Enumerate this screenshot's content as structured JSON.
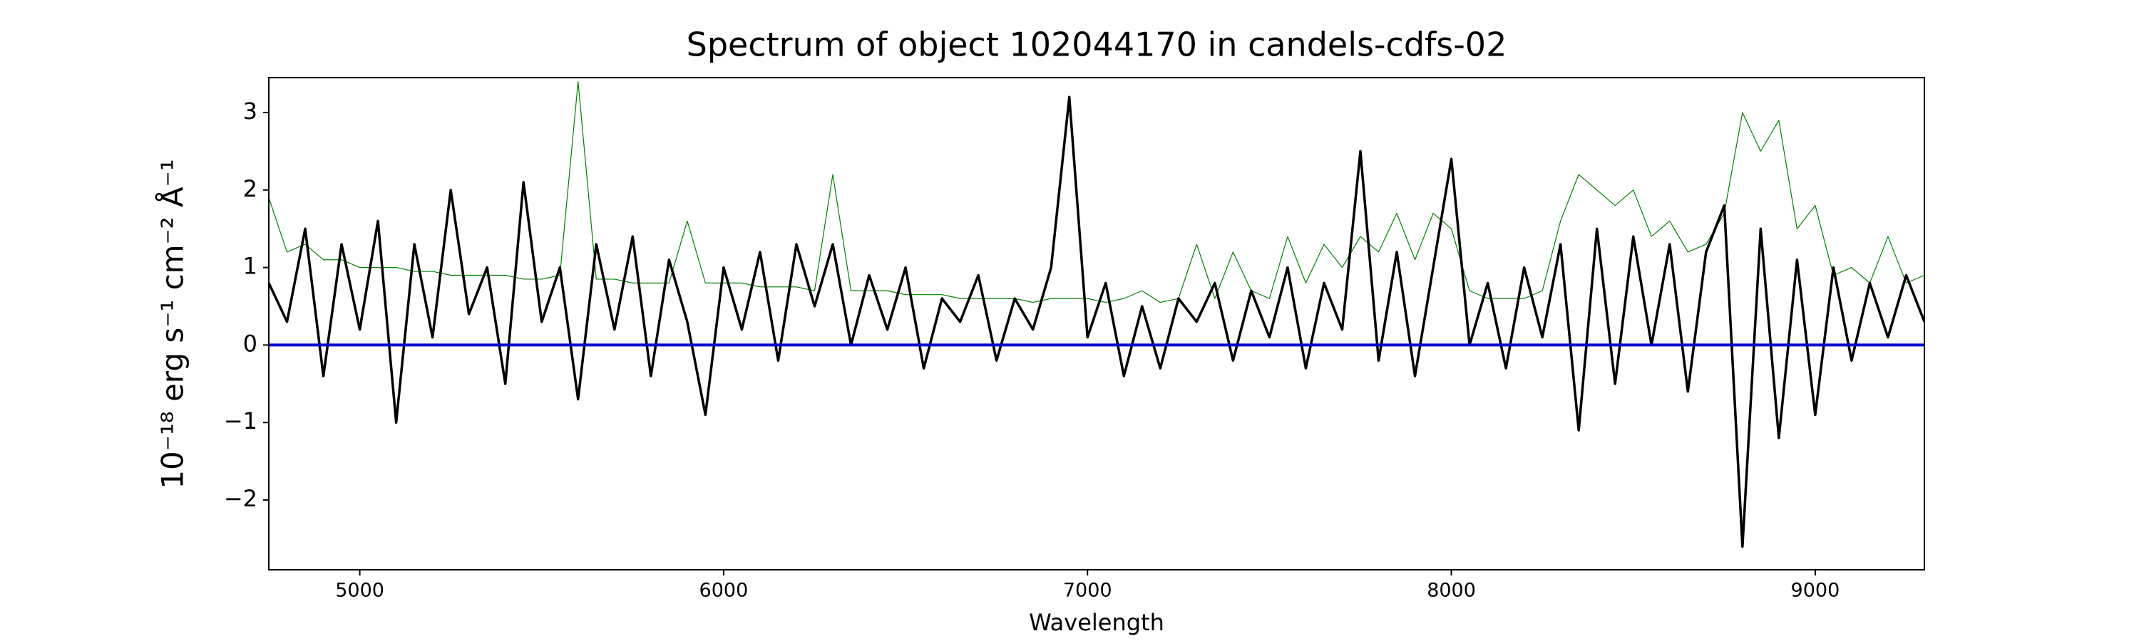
{
  "chart_data": {
    "type": "line",
    "title": "Spectrum of object 102044170 in candels-cdfs-02",
    "x_label": "Wavelength",
    "y_label": "10⁻¹⁸ erg s⁻¹ cm⁻² Å⁻¹",
    "x": [
      4750,
      4800,
      4850,
      4900,
      4950,
      5000,
      5050,
      5100,
      5150,
      5200,
      5250,
      5300,
      5350,
      5400,
      5450,
      5500,
      5550,
      5600,
      5650,
      5700,
      5750,
      5800,
      5850,
      5900,
      5950,
      6000,
      6050,
      6100,
      6150,
      6200,
      6250,
      6300,
      6350,
      6400,
      6450,
      6500,
      6550,
      6600,
      6650,
      6700,
      6750,
      6800,
      6850,
      6900,
      6950,
      7000,
      7050,
      7100,
      7150,
      7200,
      7250,
      7300,
      7350,
      7400,
      7450,
      7500,
      7550,
      7600,
      7650,
      7700,
      7750,
      7800,
      7850,
      7900,
      7950,
      8000,
      8050,
      8100,
      8150,
      8200,
      8250,
      8300,
      8350,
      8400,
      8450,
      8500,
      8550,
      8600,
      8650,
      8700,
      8750,
      8800,
      8850,
      8900,
      8950,
      9000,
      9050,
      9100,
      9150,
      9200,
      9250,
      9300
    ],
    "series": [
      {
        "color": "#008000",
        "width": 1.2,
        "values": [
          1.9,
          1.2,
          1.3,
          1.1,
          1.1,
          1.0,
          1.0,
          1.0,
          0.95,
          0.95,
          0.9,
          0.9,
          0.9,
          0.9,
          0.85,
          0.85,
          0.9,
          3.4,
          0.85,
          0.85,
          0.8,
          0.8,
          0.8,
          1.6,
          0.8,
          0.8,
          0.8,
          0.75,
          0.75,
          0.75,
          0.7,
          2.2,
          0.7,
          0.7,
          0.7,
          0.65,
          0.65,
          0.65,
          0.6,
          0.6,
          0.6,
          0.6,
          0.55,
          0.6,
          0.6,
          0.6,
          0.55,
          0.6,
          0.7,
          0.55,
          0.6,
          1.3,
          0.6,
          1.2,
          0.7,
          0.6,
          1.4,
          0.8,
          1.3,
          1.0,
          1.4,
          1.2,
          1.7,
          1.1,
          1.7,
          1.5,
          0.7,
          0.6,
          0.6,
          0.6,
          0.7,
          1.6,
          2.2,
          2.0,
          1.8,
          2.0,
          1.4,
          1.6,
          1.2,
          1.3,
          1.7,
          3.0,
          2.5,
          2.9,
          1.5,
          1.8,
          0.9,
          1.0,
          0.8,
          1.4,
          0.8,
          0.9
        ]
      },
      {
        "color": "#000000",
        "width": 3.5,
        "values": [
          0.8,
          0.3,
          1.5,
          -0.4,
          1.3,
          0.2,
          1.6,
          -1.0,
          1.3,
          0.1,
          2.0,
          0.4,
          1.0,
          -0.5,
          2.1,
          0.3,
          1.0,
          -0.7,
          1.3,
          0.2,
          1.4,
          -0.4,
          1.1,
          0.3,
          -0.9,
          1.0,
          0.2,
          1.2,
          -0.2,
          1.3,
          0.5,
          1.3,
          0.0,
          0.9,
          0.2,
          1.0,
          -0.3,
          0.6,
          0.3,
          0.9,
          -0.2,
          0.6,
          0.2,
          1.0,
          3.2,
          0.1,
          0.8,
          -0.4,
          0.5,
          -0.3,
          0.6,
          0.3,
          0.8,
          -0.2,
          0.7,
          0.1,
          1.0,
          -0.3,
          0.8,
          0.2,
          2.5,
          -0.2,
          1.2,
          -0.4,
          1.0,
          2.4,
          0.0,
          0.8,
          -0.3,
          1.0,
          0.1,
          1.3,
          -1.1,
          1.5,
          -0.5,
          1.4,
          0.0,
          1.3,
          -0.6,
          1.2,
          1.8,
          -2.6,
          1.5,
          -1.2,
          1.1,
          -0.9,
          1.0,
          -0.2,
          0.8,
          0.1,
          0.9,
          0.3
        ]
      },
      {
        "color": "#0000cc",
        "width": 4,
        "x": [
          4750,
          9300
        ],
        "values": [
          0,
          0
        ]
      }
    ],
    "xlim": [
      4750,
      9300
    ],
    "ylim": [
      -2.9,
      3.45
    ],
    "xticks": [
      5000,
      6000,
      7000,
      8000,
      9000
    ],
    "yticks": [
      {
        "value": -2,
        "label": "−2"
      },
      {
        "value": -1,
        "label": "−1"
      },
      0,
      1,
      2,
      3
    ]
  }
}
